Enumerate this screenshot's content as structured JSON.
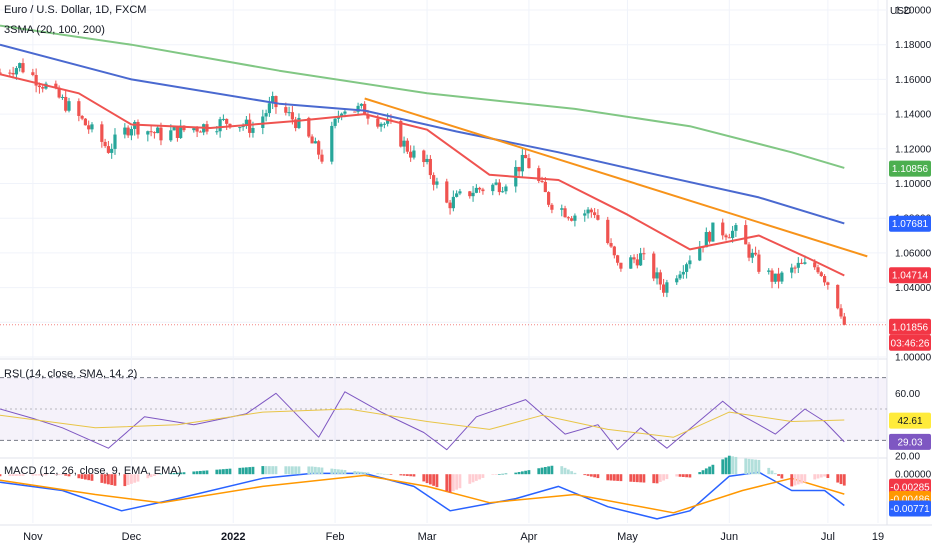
{
  "header": {
    "symbol_title": "Euro / U.S. Dollar, 1D, FXCM",
    "indicator_label": "3SMA (20, 100, 200)",
    "currency": "USD"
  },
  "chart_data": [
    {
      "type": "candlestick",
      "title": "Euro / U.S. Dollar, 1D, FXCM",
      "ylabel": "USD",
      "ylim": [
        1.0,
        1.2
      ],
      "y_ticks": [
        "1.00000",
        "1.02000",
        "1.04000",
        "1.06000",
        "1.08000",
        "1.10000",
        "1.12000",
        "1.14000",
        "1.16000",
        "1.18000",
        "1.20000"
      ],
      "x_ticks": [
        "Nov",
        "Dec",
        "2022",
        "Feb",
        "Mar",
        "Apr",
        "May",
        "Jun",
        "Jul",
        "19"
      ],
      "x_range": [
        "2021-10-22",
        "2022-07-19"
      ],
      "close_anchors": [
        [
          "2021-10-22",
          1.164
        ],
        [
          "2021-10-28",
          1.168
        ],
        [
          "2021-11-05",
          1.156
        ],
        [
          "2021-11-12",
          1.144
        ],
        [
          "2021-11-19",
          1.13
        ],
        [
          "2021-11-24",
          1.12
        ],
        [
          "2021-12-01",
          1.134
        ],
        [
          "2021-12-10",
          1.128
        ],
        [
          "2021-12-20",
          1.132
        ],
        [
          "2021-12-31",
          1.136
        ],
        [
          "2022-01-07",
          1.132
        ],
        [
          "2022-01-13",
          1.146
        ],
        [
          "2022-01-20",
          1.136
        ],
        [
          "2022-01-28",
          1.115
        ],
        [
          "2022-02-03",
          1.144
        ],
        [
          "2022-02-10",
          1.142
        ],
        [
          "2022-02-18",
          1.132
        ],
        [
          "2022-02-24",
          1.118
        ],
        [
          "2022-03-01",
          1.11
        ],
        [
          "2022-03-07",
          1.088
        ],
        [
          "2022-03-15",
          1.096
        ],
        [
          "2022-03-24",
          1.1
        ],
        [
          "2022-03-31",
          1.114
        ],
        [
          "2022-04-07",
          1.09
        ],
        [
          "2022-04-14",
          1.082
        ],
        [
          "2022-04-21",
          1.084
        ],
        [
          "2022-04-28",
          1.052
        ],
        [
          "2022-05-05",
          1.058
        ],
        [
          "2022-05-12",
          1.04
        ],
        [
          "2022-05-20",
          1.058
        ],
        [
          "2022-05-27",
          1.073
        ],
        [
          "2022-06-03",
          1.072
        ],
        [
          "2022-06-10",
          1.052
        ],
        [
          "2022-06-15",
          1.044
        ],
        [
          "2022-06-22",
          1.052
        ],
        [
          "2022-06-28",
          1.052
        ],
        [
          "2022-07-01",
          1.043
        ],
        [
          "2022-07-05",
          1.027
        ],
        [
          "2022-07-06",
          1.01856
        ]
      ],
      "series": [
        {
          "name": "SMA 20",
          "color": "#ef5350",
          "last": "1.04714",
          "points": [
            [
              "2021-10-22",
              1.163
            ],
            [
              "2021-11-15",
              1.152
            ],
            [
              "2021-12-01",
              1.134
            ],
            [
              "2021-12-25",
              1.132
            ],
            [
              "2022-01-20",
              1.136
            ],
            [
              "2022-02-10",
              1.14
            ],
            [
              "2022-03-01",
              1.131
            ],
            [
              "2022-03-20",
              1.105
            ],
            [
              "2022-04-10",
              1.102
            ],
            [
              "2022-05-01",
              1.082
            ],
            [
              "2022-05-20",
              1.062
            ],
            [
              "2022-06-10",
              1.07
            ],
            [
              "2022-06-25",
              1.057
            ],
            [
              "2022-07-06",
              1.047
            ]
          ]
        },
        {
          "name": "SMA 100",
          "color": "#4a69d0",
          "last": "1.07681",
          "points": [
            [
              "2021-10-22",
              1.18
            ],
            [
              "2021-12-01",
              1.16
            ],
            [
              "2022-01-15",
              1.146
            ],
            [
              "2022-02-10",
              1.142
            ],
            [
              "2022-03-10",
              1.13
            ],
            [
              "2022-04-10",
              1.118
            ],
            [
              "2022-05-10",
              1.105
            ],
            [
              "2022-06-10",
              1.092
            ],
            [
              "2022-07-06",
              1.077
            ]
          ]
        },
        {
          "name": "SMA 200",
          "color": "#81c784",
          "last": "1.10856",
          "points": [
            [
              "2021-10-22",
              1.191
            ],
            [
              "2021-12-01",
              1.18
            ],
            [
              "2022-01-15",
              1.165
            ],
            [
              "2022-03-01",
              1.152
            ],
            [
              "2022-04-15",
              1.143
            ],
            [
              "2022-05-20",
              1.133
            ],
            [
              "2022-06-20",
              1.118
            ],
            [
              "2022-07-06",
              1.109
            ]
          ]
        }
      ],
      "trendline": {
        "color": "#f7931a",
        "from": [
          "2022-02-10",
          1.149
        ],
        "to": [
          "2022-07-13",
          1.058
        ]
      },
      "last_price": "1.01856",
      "countdown": "03:46:26",
      "bull_color": "#26a69a",
      "bear_color": "#ef5350"
    },
    {
      "type": "line",
      "title": "RSI (14, close, SMA, 14, 2)",
      "ylim": [
        20,
        80
      ],
      "y_ticks": [
        "60.00",
        "20.00"
      ],
      "bands": [
        70,
        30
      ],
      "series": [
        {
          "name": "RSI",
          "color": "#7e57c2",
          "last": "29.03",
          "points": [
            [
              "2021-10-22",
              50
            ],
            [
              "2021-11-01",
              44
            ],
            [
              "2021-11-10",
              38
            ],
            [
              "2021-11-24",
              25
            ],
            [
              "2021-12-05",
              45
            ],
            [
              "2021-12-20",
              40
            ],
            [
              "2022-01-05",
              47
            ],
            [
              "2022-01-14",
              60
            ],
            [
              "2022-01-27",
              32
            ],
            [
              "2022-02-04",
              61
            ],
            [
              "2022-02-15",
              48
            ],
            [
              "2022-02-28",
              35
            ],
            [
              "2022-03-07",
              24
            ],
            [
              "2022-03-16",
              45
            ],
            [
              "2022-03-31",
              56
            ],
            [
              "2022-04-12",
              34
            ],
            [
              "2022-04-22",
              40
            ],
            [
              "2022-04-28",
              24
            ],
            [
              "2022-05-05",
              38
            ],
            [
              "2022-05-13",
              25
            ],
            [
              "2022-05-30",
              55
            ],
            [
              "2022-06-03",
              48
            ],
            [
              "2022-06-10",
              40
            ],
            [
              "2022-06-15",
              34
            ],
            [
              "2022-06-24",
              50
            ],
            [
              "2022-06-30",
              42
            ],
            [
              "2022-07-06",
              29
            ]
          ]
        },
        {
          "name": "RSI MA",
          "color": "#e8c547",
          "last": "42.61",
          "points": [
            [
              "2021-10-22",
              46
            ],
            [
              "2021-11-20",
              38
            ],
            [
              "2021-12-15",
              40
            ],
            [
              "2022-01-10",
              48
            ],
            [
              "2022-02-05",
              50
            ],
            [
              "2022-03-01",
              42
            ],
            [
              "2022-03-20",
              37
            ],
            [
              "2022-04-05",
              46
            ],
            [
              "2022-04-25",
              37
            ],
            [
              "2022-05-15",
              32
            ],
            [
              "2022-06-01",
              48
            ],
            [
              "2022-06-20",
              42
            ],
            [
              "2022-07-06",
              43
            ]
          ]
        }
      ]
    },
    {
      "type": "bar+line",
      "title": "MACD (12, 26, close, 9, EMA, EMA)",
      "ylim": [
        -0.012,
        0.003
      ],
      "y_ticks": [
        "0.00000"
      ],
      "series": [
        {
          "name": "MACD",
          "color": "#2962ff",
          "last": "-0.00771",
          "points": [
            [
              "2021-10-22",
              -0.002
            ],
            [
              "2021-11-10",
              -0.004
            ],
            [
              "2021-11-28",
              -0.009
            ],
            [
              "2021-12-15",
              -0.006
            ],
            [
              "2022-01-10",
              -0.001
            ],
            [
              "2022-01-25",
              0.0002
            ],
            [
              "2022-02-10",
              0.0002
            ],
            [
              "2022-02-25",
              -0.003
            ],
            [
              "2022-03-08",
              -0.009
            ],
            [
              "2022-03-28",
              -0.006
            ],
            [
              "2022-04-10",
              -0.003
            ],
            [
              "2022-04-25",
              -0.008
            ],
            [
              "2022-05-10",
              -0.011
            ],
            [
              "2022-05-20",
              -0.009
            ],
            [
              "2022-06-01",
              -0.0005
            ],
            [
              "2022-06-10",
              0.0005
            ],
            [
              "2022-06-20",
              -0.004
            ],
            [
              "2022-06-30",
              -0.004
            ],
            [
              "2022-07-06",
              -0.0077
            ]
          ]
        },
        {
          "name": "Signal",
          "color": "#ff9800",
          "last": "-0.00486",
          "points": [
            [
              "2021-10-22",
              -0.0015
            ],
            [
              "2021-11-20",
              -0.005
            ],
            [
              "2021-12-10",
              -0.007
            ],
            [
              "2022-01-10",
              -0.003
            ],
            [
              "2022-02-10",
              -0.0003
            ],
            [
              "2022-03-01",
              -0.003
            ],
            [
              "2022-03-20",
              -0.007
            ],
            [
              "2022-04-15",
              -0.005
            ],
            [
              "2022-05-15",
              -0.0095
            ],
            [
              "2022-06-05",
              -0.004
            ],
            [
              "2022-06-20",
              -0.001
            ],
            [
              "2022-07-06",
              -0.0049
            ]
          ]
        },
        {
          "name": "Histogram",
          "color": "#ef5350",
          "last": "-0.00285"
        }
      ]
    }
  ],
  "price_axis": {
    "tag_sma200": "1.10856",
    "tag_sma100": "1.07681",
    "tag_sma20": "1.04714",
    "tag_last": "1.01856",
    "tag_countdown": "03:46:26"
  },
  "rsi_axis": {
    "tag_ma": "42.61",
    "tag_rsi": "29.03"
  },
  "macd_axis": {
    "tag_hist": "-0.00285",
    "tag_signal": "-0.00486",
    "tag_macd": "-0.00771"
  }
}
